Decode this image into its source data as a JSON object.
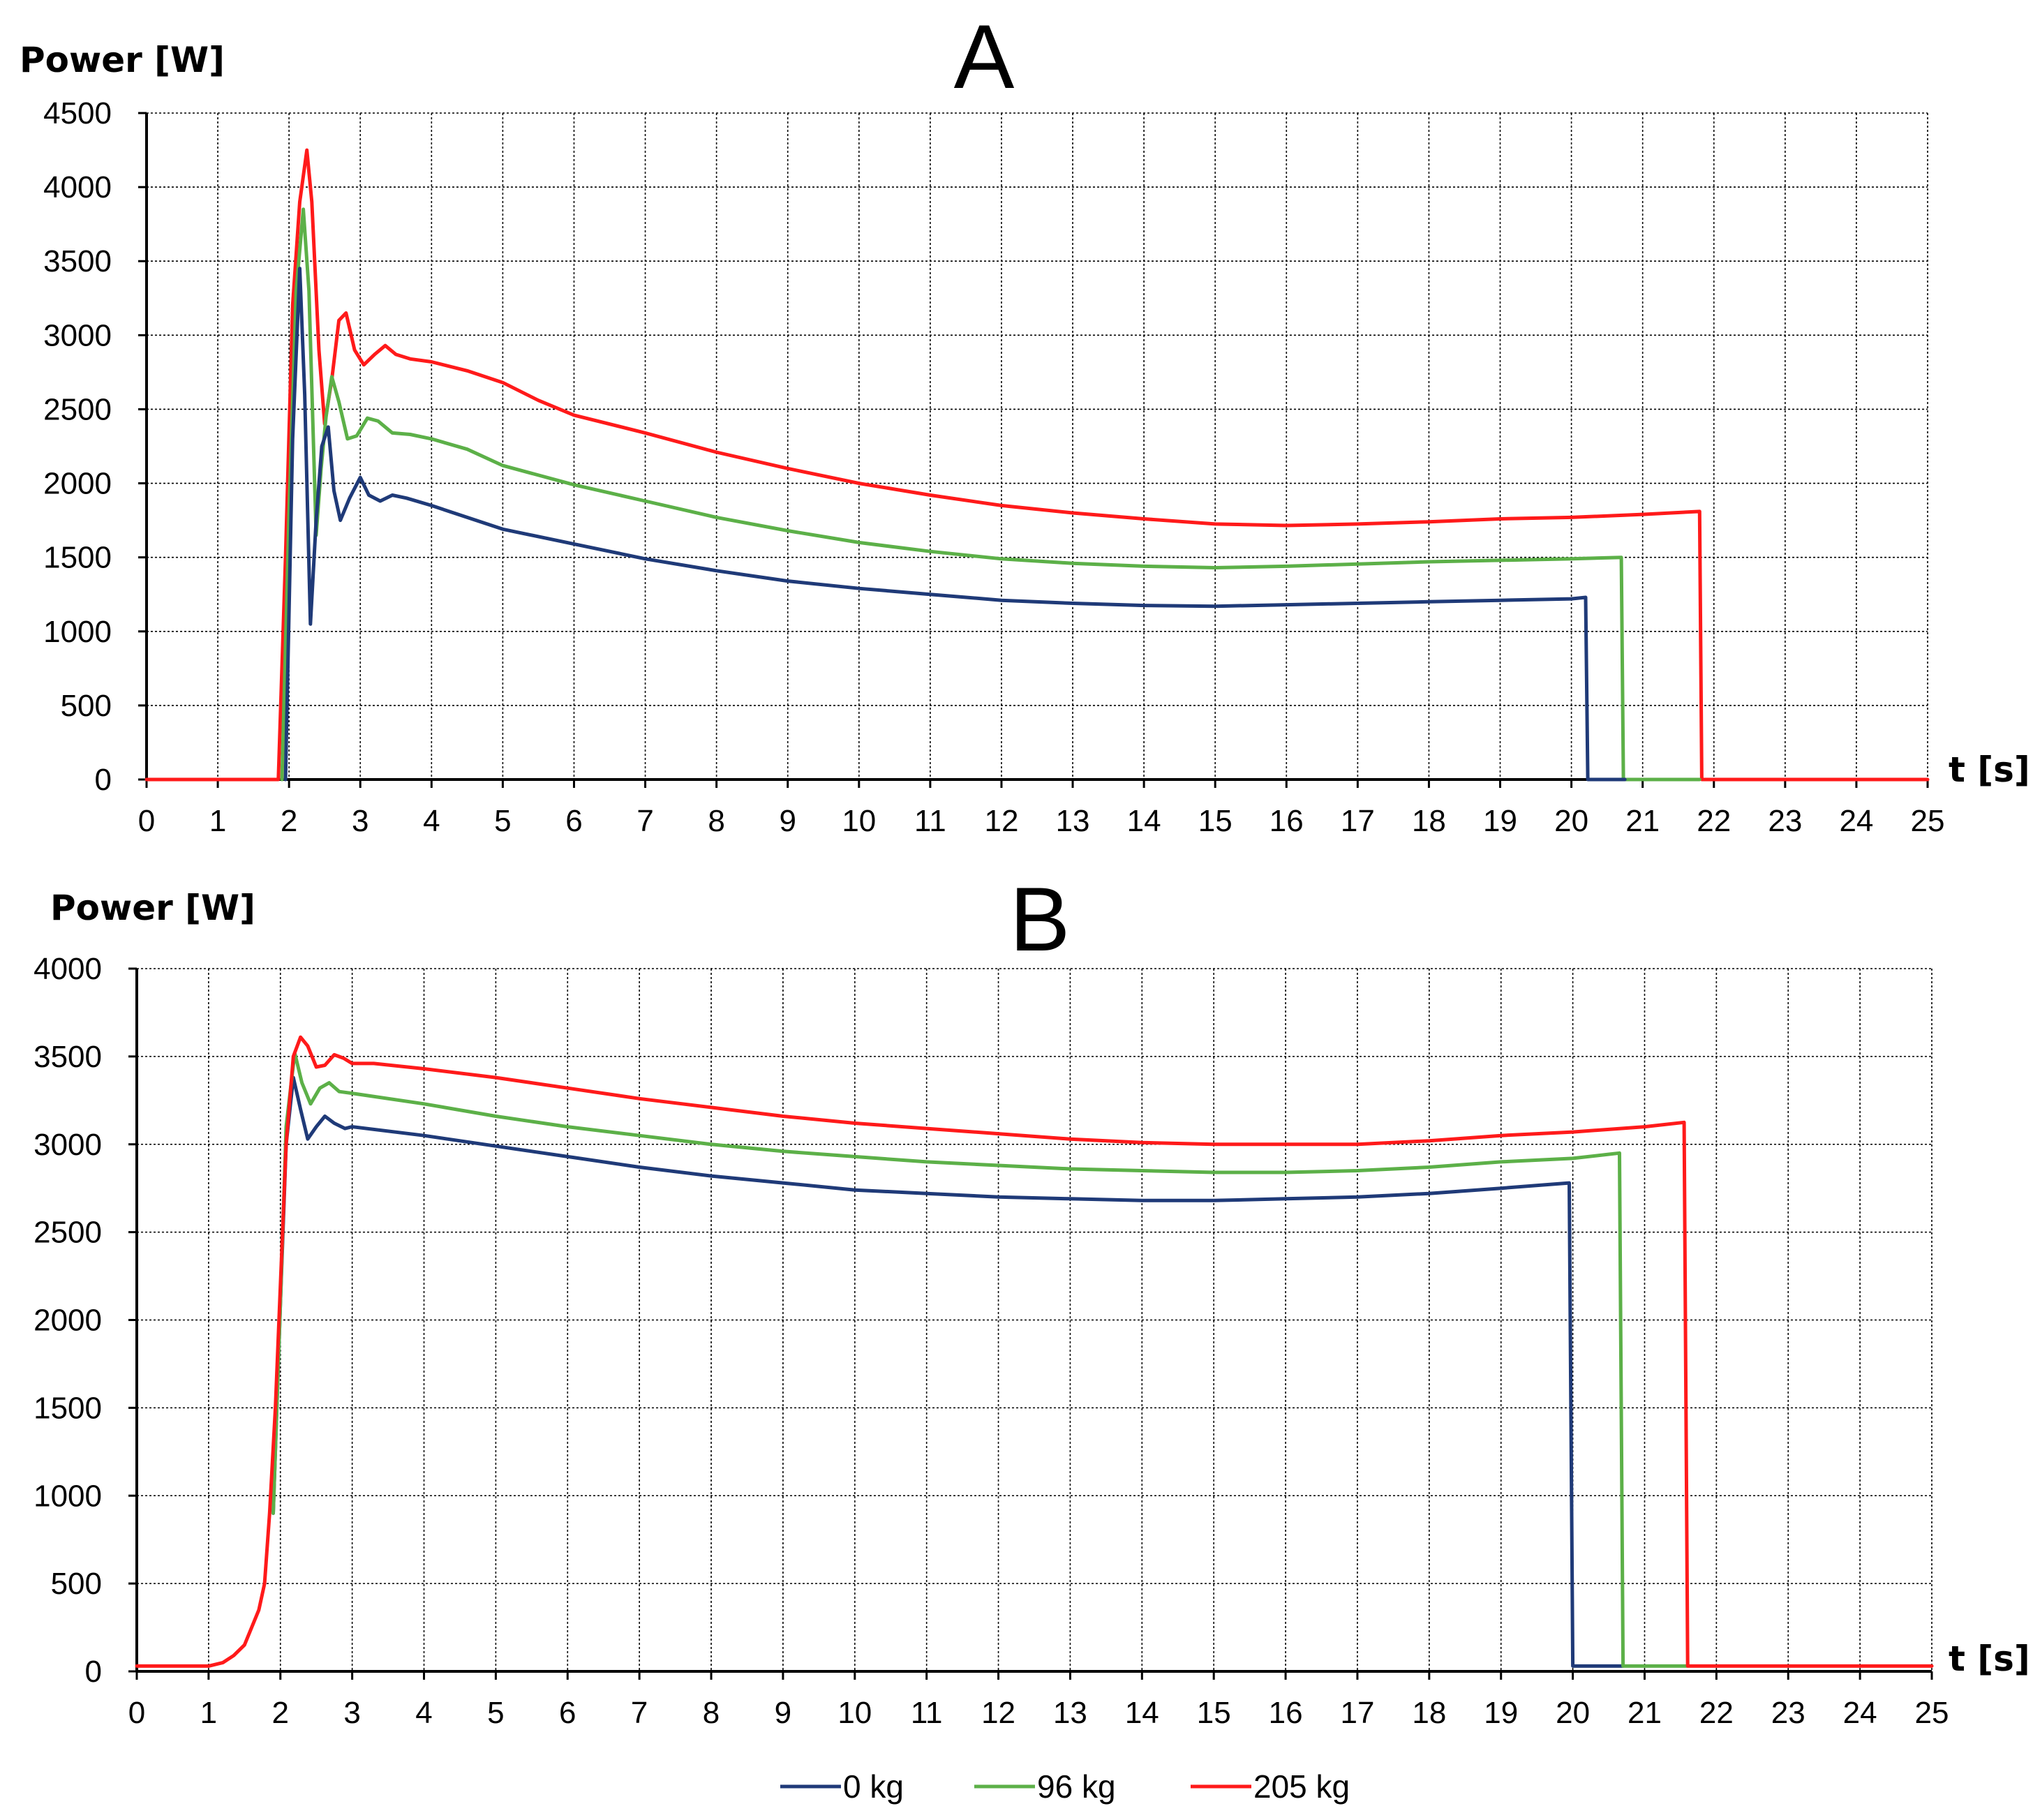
{
  "legend": [
    {
      "name": "0 kg",
      "color": "#1f3a78"
    },
    {
      "name": "96 kg",
      "color": "#5cb048"
    },
    {
      "name": "205 kg",
      "color": "#ff1a1a"
    }
  ],
  "chart_data": [
    {
      "type": "line",
      "title": "A",
      "xlabel": "t [s]",
      "ylabel": "Power [W]",
      "xlim": [
        0,
        25
      ],
      "ylim": [
        0,
        4500
      ],
      "xticks": [
        0,
        1,
        2,
        3,
        4,
        5,
        6,
        7,
        8,
        9,
        10,
        11,
        12,
        13,
        14,
        15,
        16,
        17,
        18,
        19,
        20,
        21,
        22,
        23,
        24,
        25
      ],
      "yticks": [
        0,
        500,
        1000,
        1500,
        2000,
        2500,
        3000,
        3500,
        4000,
        4500
      ],
      "grid": true,
      "series": [
        {
          "name": "205 kg",
          "color": "#ff1a1a",
          "points": [
            [
              0,
              0
            ],
            [
              1.85,
              0
            ],
            [
              1.95,
              1500
            ],
            [
              2.05,
              3200
            ],
            [
              2.15,
              3900
            ],
            [
              2.25,
              4250
            ],
            [
              2.32,
              3900
            ],
            [
              2.42,
              2900
            ],
            [
              2.5,
              2400
            ],
            [
              2.6,
              2700
            ],
            [
              2.7,
              3100
            ],
            [
              2.8,
              3150
            ],
            [
              2.92,
              2900
            ],
            [
              3.05,
              2800
            ],
            [
              3.2,
              2870
            ],
            [
              3.35,
              2930
            ],
            [
              3.5,
              2870
            ],
            [
              3.7,
              2840
            ],
            [
              4.0,
              2820
            ],
            [
              4.5,
              2760
            ],
            [
              5,
              2680
            ],
            [
              5.5,
              2560
            ],
            [
              6,
              2460
            ],
            [
              7,
              2340
            ],
            [
              8,
              2210
            ],
            [
              9,
              2100
            ],
            [
              10,
              2000
            ],
            [
              11,
              1920
            ],
            [
              12,
              1850
            ],
            [
              13,
              1800
            ],
            [
              14,
              1760
            ],
            [
              15,
              1725
            ],
            [
              16,
              1715
            ],
            [
              17,
              1725
            ],
            [
              18,
              1740
            ],
            [
              19,
              1760
            ],
            [
              20,
              1770
            ],
            [
              21,
              1790
            ],
            [
              21.8,
              1810
            ],
            [
              21.83,
              0
            ],
            [
              25,
              0
            ]
          ]
        },
        {
          "name": "96 kg",
          "color": "#5cb048",
          "points": [
            [
              1.9,
              0
            ],
            [
              2.0,
              1800
            ],
            [
              2.1,
              3300
            ],
            [
              2.2,
              3850
            ],
            [
              2.28,
              3300
            ],
            [
              2.38,
              1650
            ],
            [
              2.45,
              2100
            ],
            [
              2.52,
              2450
            ],
            [
              2.6,
              2720
            ],
            [
              2.7,
              2550
            ],
            [
              2.82,
              2300
            ],
            [
              2.95,
              2320
            ],
            [
              3.1,
              2440
            ],
            [
              3.25,
              2420
            ],
            [
              3.45,
              2340
            ],
            [
              3.7,
              2330
            ],
            [
              4,
              2300
            ],
            [
              4.5,
              2230
            ],
            [
              5,
              2120
            ],
            [
              6,
              1990
            ],
            [
              7,
              1880
            ],
            [
              8,
              1770
            ],
            [
              9,
              1680
            ],
            [
              10,
              1600
            ],
            [
              11,
              1540
            ],
            [
              12,
              1490
            ],
            [
              13,
              1460
            ],
            [
              14,
              1440
            ],
            [
              15,
              1430
            ],
            [
              16,
              1440
            ],
            [
              17,
              1455
            ],
            [
              18,
              1470
            ],
            [
              19,
              1480
            ],
            [
              20,
              1490
            ],
            [
              20.7,
              1500
            ],
            [
              20.73,
              0
            ],
            [
              21.8,
              0
            ]
          ]
        },
        {
          "name": "0 kg",
          "color": "#1f3a78",
          "points": [
            [
              1.95,
              0
            ],
            [
              2.05,
              2300
            ],
            [
              2.15,
              3450
            ],
            [
              2.22,
              2600
            ],
            [
              2.3,
              1050
            ],
            [
              2.38,
              1750
            ],
            [
              2.46,
              2250
            ],
            [
              2.55,
              2380
            ],
            [
              2.63,
              1950
            ],
            [
              2.72,
              1750
            ],
            [
              2.85,
              1900
            ],
            [
              3.0,
              2040
            ],
            [
              3.12,
              1920
            ],
            [
              3.28,
              1880
            ],
            [
              3.45,
              1920
            ],
            [
              3.65,
              1900
            ],
            [
              4,
              1850
            ],
            [
              4.5,
              1770
            ],
            [
              5,
              1690
            ],
            [
              6,
              1590
            ],
            [
              7,
              1490
            ],
            [
              8,
              1410
            ],
            [
              9,
              1340
            ],
            [
              10,
              1290
            ],
            [
              11,
              1250
            ],
            [
              12,
              1210
            ],
            [
              13,
              1190
            ],
            [
              14,
              1175
            ],
            [
              15,
              1170
            ],
            [
              16,
              1180
            ],
            [
              17,
              1190
            ],
            [
              18,
              1200
            ],
            [
              19,
              1210
            ],
            [
              20,
              1220
            ],
            [
              20.2,
              1230
            ],
            [
              20.23,
              0
            ],
            [
              20.75,
              0
            ]
          ]
        }
      ]
    },
    {
      "type": "line",
      "title": "B",
      "xlabel": "t [s]",
      "ylabel": "Power [W]",
      "xlim": [
        0,
        25
      ],
      "ylim": [
        0,
        4000
      ],
      "xticks": [
        0,
        1,
        2,
        3,
        4,
        5,
        6,
        7,
        8,
        9,
        10,
        11,
        12,
        13,
        14,
        15,
        16,
        17,
        18,
        19,
        20,
        21,
        22,
        23,
        24,
        25
      ],
      "yticks": [
        0,
        500,
        1000,
        1500,
        2000,
        2500,
        3000,
        3500,
        4000
      ],
      "grid": true,
      "series": [
        {
          "name": "0 kg",
          "color": "#1f3a78",
          "points": [
            [
              1.9,
              900
            ],
            [
              2.0,
              2100
            ],
            [
              2.08,
              3000
            ],
            [
              2.18,
              3380
            ],
            [
              2.28,
              3200
            ],
            [
              2.38,
              3030
            ],
            [
              2.5,
              3100
            ],
            [
              2.62,
              3160
            ],
            [
              2.75,
              3120
            ],
            [
              2.9,
              3090
            ],
            [
              3.0,
              3100
            ],
            [
              4,
              3050
            ],
            [
              5,
              2990
            ],
            [
              6,
              2930
            ],
            [
              7,
              2870
            ],
            [
              8,
              2820
            ],
            [
              9,
              2780
            ],
            [
              10,
              2740
            ],
            [
              11,
              2720
            ],
            [
              12,
              2700
            ],
            [
              13,
              2690
            ],
            [
              14,
              2680
            ],
            [
              15,
              2680
            ],
            [
              16,
              2690
            ],
            [
              17,
              2700
            ],
            [
              18,
              2720
            ],
            [
              19,
              2750
            ],
            [
              19.95,
              2780
            ],
            [
              20.0,
              30
            ],
            [
              20.7,
              30
            ]
          ]
        },
        {
          "name": "96 kg",
          "color": "#5cb048",
          "points": [
            [
              1.9,
              900
            ],
            [
              2.0,
              2100
            ],
            [
              2.08,
              3100
            ],
            [
              2.2,
              3520
            ],
            [
              2.3,
              3350
            ],
            [
              2.42,
              3230
            ],
            [
              2.55,
              3320
            ],
            [
              2.68,
              3350
            ],
            [
              2.82,
              3300
            ],
            [
              3.0,
              3290
            ],
            [
              4,
              3230
            ],
            [
              5,
              3160
            ],
            [
              6,
              3100
            ],
            [
              7,
              3050
            ],
            [
              8,
              3000
            ],
            [
              9,
              2960
            ],
            [
              10,
              2930
            ],
            [
              11,
              2900
            ],
            [
              12,
              2880
            ],
            [
              13,
              2860
            ],
            [
              14,
              2850
            ],
            [
              15,
              2840
            ],
            [
              16,
              2840
            ],
            [
              17,
              2850
            ],
            [
              18,
              2870
            ],
            [
              19,
              2900
            ],
            [
              20,
              2920
            ],
            [
              20.65,
              2950
            ],
            [
              20.7,
              30
            ],
            [
              21.6,
              30
            ]
          ]
        },
        {
          "name": "205 kg",
          "color": "#ff1a1a",
          "points": [
            [
              0,
              30
            ],
            [
              1.0,
              30
            ],
            [
              1.2,
              50
            ],
            [
              1.35,
              90
            ],
            [
              1.5,
              150
            ],
            [
              1.6,
              250
            ],
            [
              1.7,
              350
            ],
            [
              1.78,
              500
            ],
            [
              1.85,
              900
            ],
            [
              1.93,
              1500
            ],
            [
              2.0,
              2200
            ],
            [
              2.08,
              3000
            ],
            [
              2.18,
              3500
            ],
            [
              2.28,
              3610
            ],
            [
              2.38,
              3560
            ],
            [
              2.5,
              3440
            ],
            [
              2.62,
              3450
            ],
            [
              2.75,
              3510
            ],
            [
              2.88,
              3490
            ],
            [
              3.0,
              3460
            ],
            [
              3.3,
              3460
            ],
            [
              4,
              3430
            ],
            [
              5,
              3380
            ],
            [
              6,
              3320
            ],
            [
              7,
              3260
            ],
            [
              8,
              3210
            ],
            [
              9,
              3160
            ],
            [
              10,
              3120
            ],
            [
              11,
              3090
            ],
            [
              12,
              3060
            ],
            [
              13,
              3030
            ],
            [
              14,
              3010
            ],
            [
              15,
              3000
            ],
            [
              16,
              3000
            ],
            [
              17,
              3000
            ],
            [
              18,
              3020
            ],
            [
              19,
              3050
            ],
            [
              20,
              3070
            ],
            [
              21,
              3100
            ],
            [
              21.55,
              3125
            ],
            [
              21.6,
              30
            ],
            [
              25,
              30
            ]
          ]
        }
      ]
    }
  ]
}
